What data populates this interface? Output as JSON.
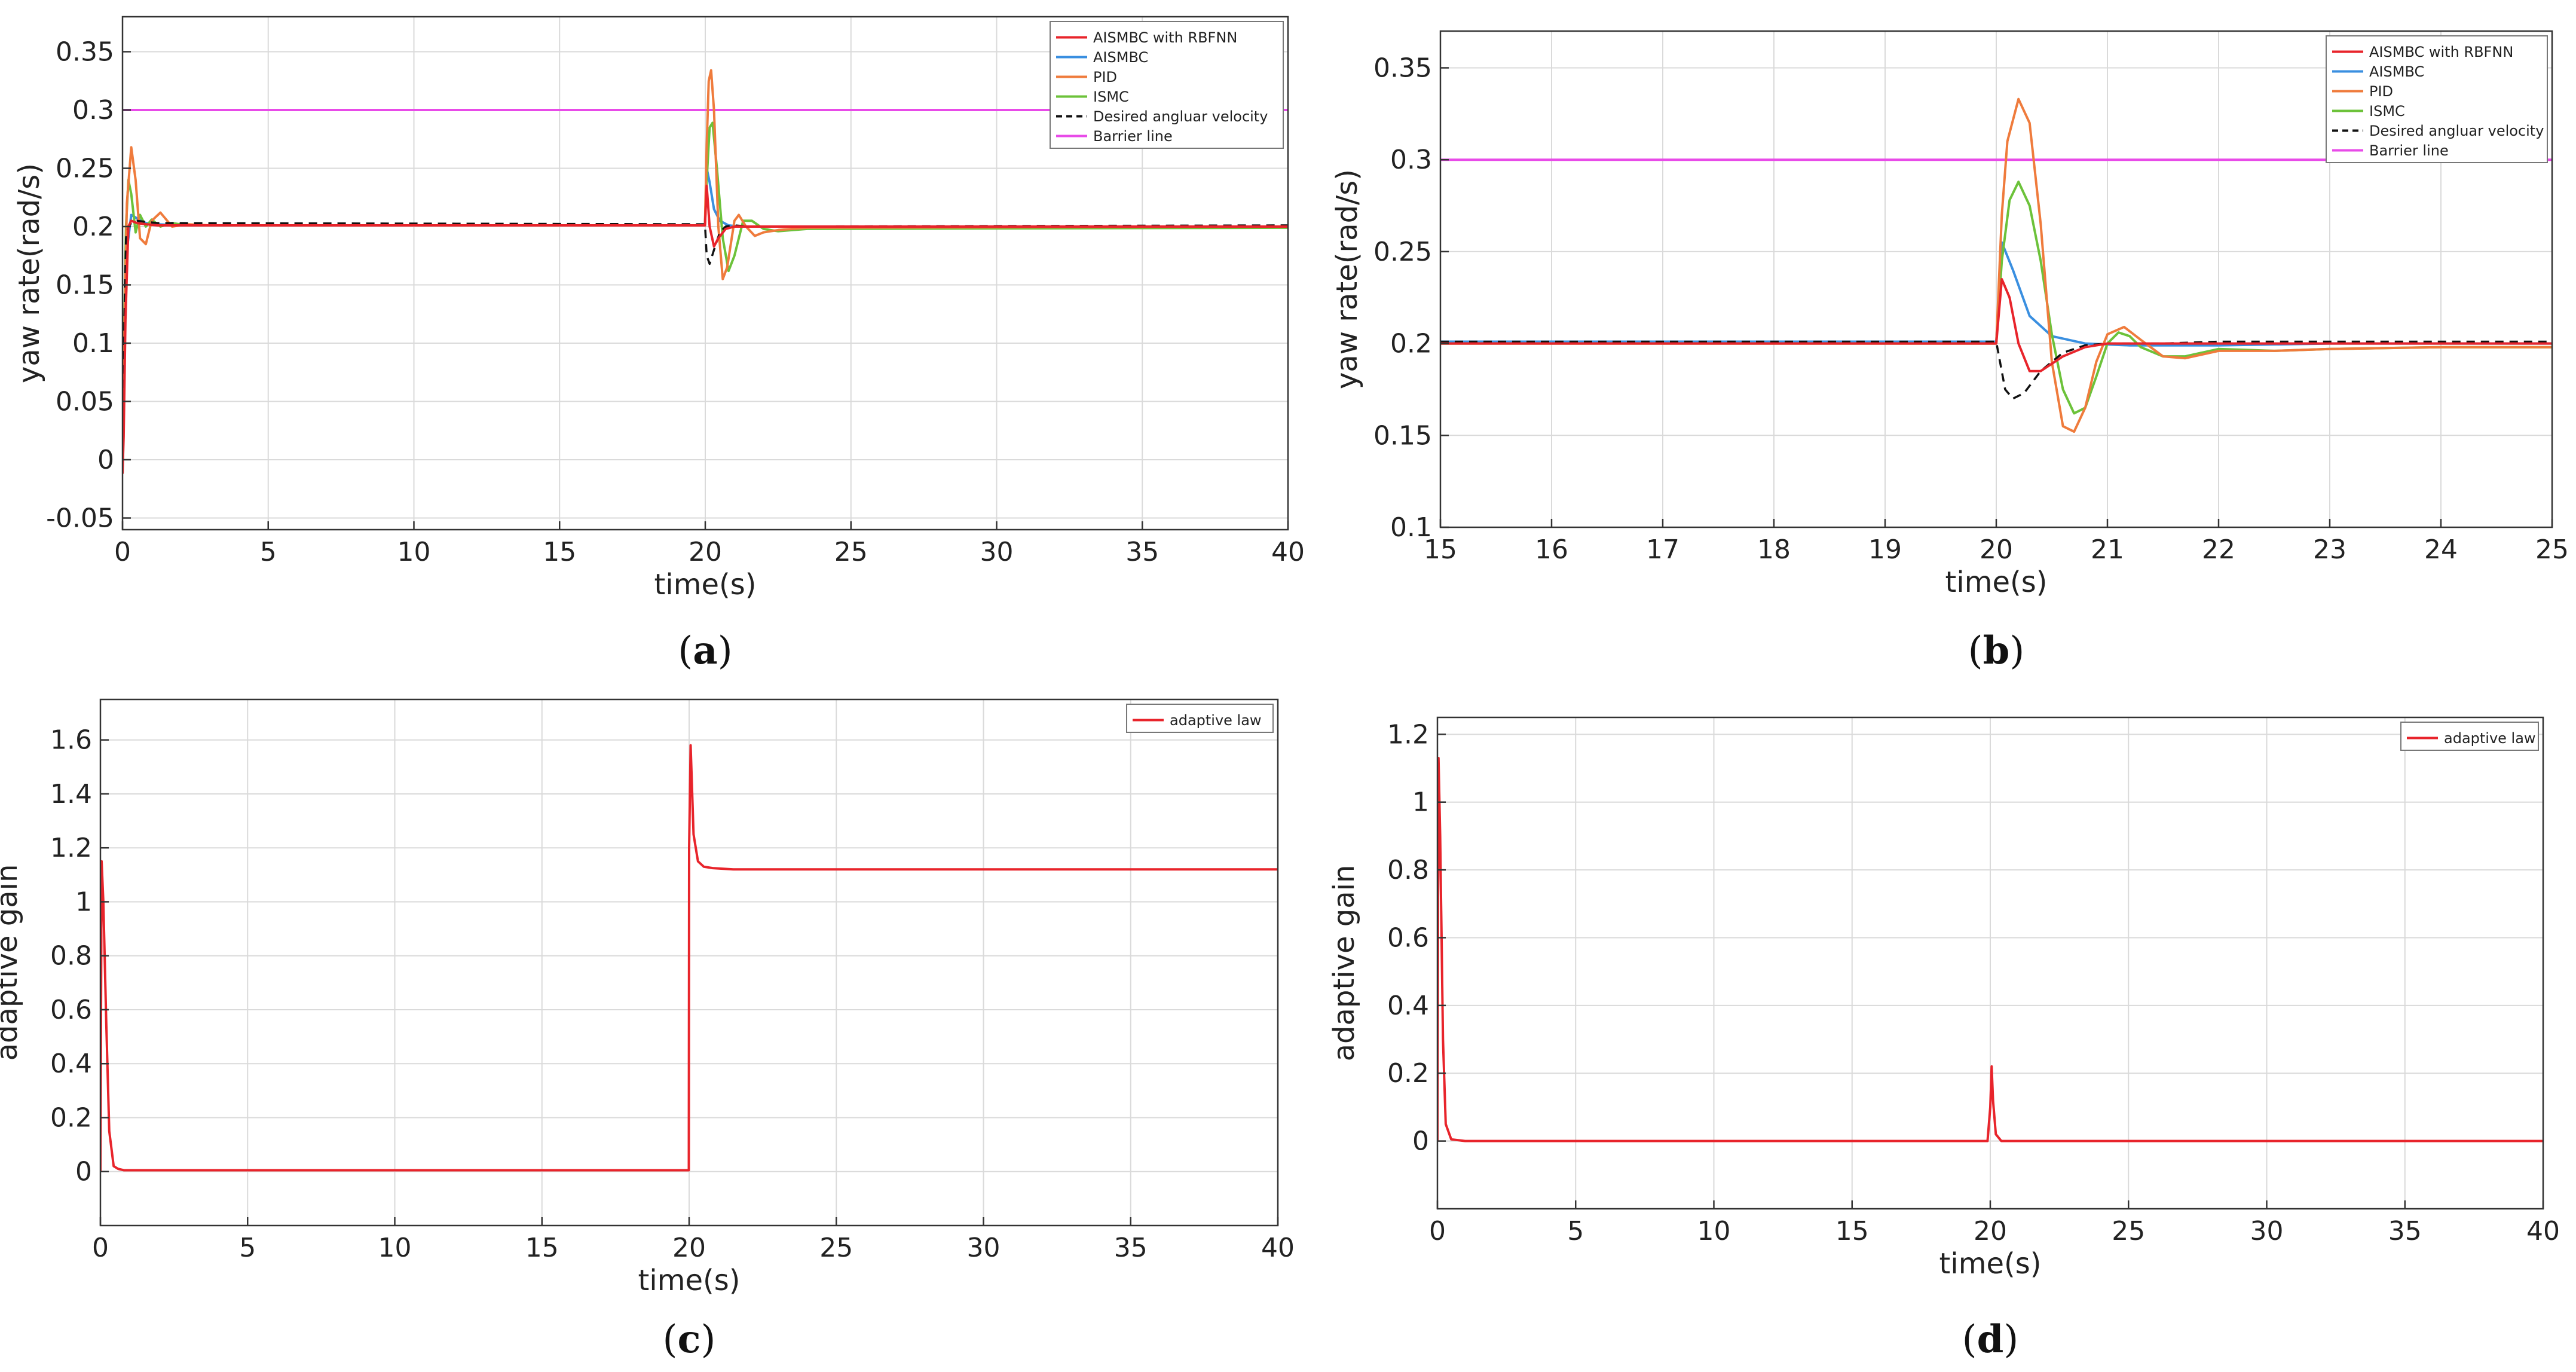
{
  "colors": {
    "aismbc_rbfnn": "#e8242b",
    "aismbc": "#3a8fe0",
    "pid": "#ef7b3c",
    "ismc": "#6cc23a",
    "desired": "#111111",
    "barrier": "#e84be8",
    "grid": "#dadada",
    "axis": "#333333"
  },
  "chart_data": [
    {
      "type": "line",
      "panel_label": "a",
      "xlabel": "time(s)",
      "ylabel": "yaw rate(rad/s)",
      "xlim": [
        0,
        40
      ],
      "ylim": [
        -0.06,
        0.38
      ],
      "xticks": [
        0,
        5,
        10,
        15,
        20,
        25,
        30,
        35,
        40
      ],
      "yticks": [
        -0.05,
        0,
        0.05,
        0.1,
        0.15,
        0.2,
        0.25,
        0.3,
        0.35
      ],
      "xtick_labels": [
        "0",
        "5",
        "10",
        "15",
        "20",
        "25",
        "30",
        "35",
        "40"
      ],
      "ytick_labels": [
        "-0.05",
        "0",
        "0.05",
        "0.1",
        "0.15",
        "0.2",
        "0.25",
        "0.3",
        "0.35"
      ],
      "legend_position": "top-right",
      "legend": [
        "AISMBC with RBFNN",
        "AISMBC",
        "PID",
        "ISMC",
        "Desired angluar velocity",
        "Barrier line"
      ],
      "series": [
        {
          "name": "Barrier line",
          "color_key": "barrier",
          "dash": false,
          "x": [
            0,
            40
          ],
          "y": [
            0.3,
            0.3
          ]
        },
        {
          "name": "AISMBC",
          "color_key": "aismbc",
          "dash": false,
          "x": [
            0,
            0.05,
            0.15,
            0.3,
            0.5,
            0.8,
            1.2,
            2,
            19.99,
            20.05,
            20.15,
            20.3,
            20.5,
            20.8,
            21.2,
            22,
            40
          ],
          "y": [
            0,
            0.09,
            0.18,
            0.21,
            0.207,
            0.203,
            0.202,
            0.201,
            0.201,
            0.25,
            0.238,
            0.215,
            0.205,
            0.201,
            0.2,
            0.2,
            0.2
          ]
        },
        {
          "name": "ISMC",
          "color_key": "ismc",
          "dash": false,
          "x": [
            0,
            0.05,
            0.12,
            0.2,
            0.3,
            0.45,
            0.6,
            0.8,
            1.0,
            1.3,
            1.7,
            2.2,
            19.99,
            20.05,
            20.15,
            20.25,
            20.4,
            20.6,
            20.8,
            21.0,
            21.3,
            21.6,
            22,
            22.5,
            23.5,
            40
          ],
          "y": [
            0,
            0.1,
            0.2,
            0.24,
            0.228,
            0.195,
            0.21,
            0.2,
            0.206,
            0.2,
            0.203,
            0.201,
            0.201,
            0.24,
            0.285,
            0.289,
            0.25,
            0.19,
            0.162,
            0.175,
            0.205,
            0.205,
            0.198,
            0.196,
            0.198,
            0.199
          ]
        },
        {
          "name": "PID",
          "color_key": "pid",
          "dash": false,
          "x": [
            0,
            0.05,
            0.15,
            0.3,
            0.45,
            0.6,
            0.8,
            1.0,
            1.3,
            1.7,
            2.2,
            3,
            19.99,
            20.05,
            20.12,
            20.2,
            20.3,
            20.45,
            20.6,
            20.75,
            21.0,
            21.15,
            21.4,
            21.7,
            22,
            22.5,
            23.5,
            40
          ],
          "y": [
            0,
            0.09,
            0.22,
            0.268,
            0.24,
            0.19,
            0.185,
            0.205,
            0.212,
            0.2,
            0.202,
            0.201,
            0.201,
            0.27,
            0.325,
            0.334,
            0.3,
            0.2,
            0.155,
            0.165,
            0.205,
            0.21,
            0.2,
            0.192,
            0.195,
            0.197,
            0.199,
            0.2
          ]
        },
        {
          "name": "Desired angluar velocity",
          "color_key": "desired",
          "dash": true,
          "x": [
            0,
            0.05,
            0.12,
            0.2,
            0.3,
            0.5,
            0.8,
            1.2,
            19.99,
            20.05,
            20.15,
            20.3,
            20.5,
            20.7,
            21.0,
            21.5,
            40
          ],
          "y": [
            0,
            0.1,
            0.19,
            0.2,
            0.203,
            0.205,
            0.204,
            0.203,
            0.202,
            0.175,
            0.168,
            0.18,
            0.195,
            0.2,
            0.201,
            0.2,
            0.201
          ]
        },
        {
          "name": "AISMBC with RBFNN",
          "color_key": "aismbc_rbfnn",
          "dash": false,
          "x": [
            0,
            0.04,
            0.1,
            0.2,
            0.3,
            0.5,
            0.8,
            1.2,
            19.99,
            20.05,
            20.15,
            20.3,
            20.45,
            20.7,
            21.0,
            22,
            40
          ],
          "y": [
            -0.012,
            0.02,
            0.12,
            0.2,
            0.205,
            0.203,
            0.202,
            0.201,
            0.201,
            0.235,
            0.2,
            0.183,
            0.19,
            0.198,
            0.2,
            0.2,
            0.2
          ]
        }
      ]
    },
    {
      "type": "line",
      "panel_label": "b",
      "xlabel": "time(s)",
      "ylabel": "yaw rate(rad/s)",
      "xlim": [
        15,
        25
      ],
      "ylim": [
        0.1,
        0.37
      ],
      "xticks": [
        15,
        16,
        17,
        18,
        19,
        20,
        21,
        22,
        23,
        24,
        25
      ],
      "yticks": [
        0.1,
        0.15,
        0.2,
        0.25,
        0.3,
        0.35
      ],
      "xtick_labels": [
        "15",
        "16",
        "17",
        "18",
        "19",
        "20",
        "21",
        "22",
        "23",
        "24",
        "25"
      ],
      "ytick_labels": [
        "0.1",
        "0.15",
        "0.2",
        "0.25",
        "0.3",
        "0.35"
      ],
      "legend_position": "top-right",
      "legend": [
        "AISMBC with RBFNN",
        "AISMBC",
        "PID",
        "ISMC",
        "Desired angluar velocity",
        "Barrier line"
      ],
      "series": [
        {
          "name": "Barrier line",
          "color_key": "barrier",
          "dash": false,
          "x": [
            15,
            25
          ],
          "y": [
            0.3,
            0.3
          ]
        },
        {
          "name": "AISMBC",
          "color_key": "aismbc",
          "dash": false,
          "x": [
            15,
            19.99,
            20.0,
            20.05,
            20.15,
            20.3,
            20.5,
            20.8,
            21.2,
            22,
            23,
            25
          ],
          "y": [
            0.201,
            0.201,
            0.201,
            0.255,
            0.24,
            0.215,
            0.204,
            0.2,
            0.199,
            0.199,
            0.2,
            0.2
          ]
        },
        {
          "name": "ISMC",
          "color_key": "ismc",
          "dash": false,
          "x": [
            15,
            19.99,
            20.0,
            20.05,
            20.12,
            20.2,
            20.3,
            20.4,
            20.5,
            20.6,
            20.7,
            20.8,
            20.9,
            21.0,
            21.1,
            21.2,
            21.3,
            21.5,
            21.7,
            22,
            22.5,
            23,
            24,
            25
          ],
          "y": [
            0.2,
            0.2,
            0.2,
            0.245,
            0.278,
            0.288,
            0.275,
            0.245,
            0.205,
            0.175,
            0.162,
            0.165,
            0.182,
            0.2,
            0.206,
            0.204,
            0.198,
            0.193,
            0.193,
            0.197,
            0.196,
            0.197,
            0.198,
            0.198
          ]
        },
        {
          "name": "PID",
          "color_key": "pid",
          "dash": false,
          "x": [
            15,
            19.99,
            20.0,
            20.05,
            20.1,
            20.2,
            20.3,
            20.4,
            20.5,
            20.6,
            20.7,
            20.8,
            20.9,
            21.0,
            21.15,
            21.3,
            21.5,
            21.7,
            22,
            22.5,
            23,
            24,
            25
          ],
          "y": [
            0.2,
            0.2,
            0.2,
            0.27,
            0.31,
            0.333,
            0.32,
            0.265,
            0.19,
            0.155,
            0.152,
            0.165,
            0.19,
            0.205,
            0.209,
            0.202,
            0.193,
            0.192,
            0.196,
            0.196,
            0.197,
            0.198,
            0.198
          ]
        },
        {
          "name": "Desired angluar velocity",
          "color_key": "desired",
          "dash": true,
          "x": [
            15,
            19.99,
            20.0,
            20.08,
            20.15,
            20.25,
            20.4,
            20.6,
            20.8,
            21.0,
            21.5,
            22,
            25
          ],
          "y": [
            0.201,
            0.201,
            0.201,
            0.175,
            0.17,
            0.173,
            0.185,
            0.195,
            0.199,
            0.2,
            0.2,
            0.201,
            0.201
          ]
        },
        {
          "name": "AISMBC with RBFNN",
          "color_key": "aismbc_rbfnn",
          "dash": false,
          "x": [
            15,
            19.99,
            20.0,
            20.05,
            20.12,
            20.2,
            20.3,
            20.4,
            20.6,
            20.8,
            21.0,
            22,
            25
          ],
          "y": [
            0.2,
            0.2,
            0.2,
            0.235,
            0.225,
            0.2,
            0.185,
            0.185,
            0.193,
            0.198,
            0.2,
            0.2,
            0.2
          ]
        }
      ]
    },
    {
      "type": "line",
      "panel_label": "c",
      "xlabel": "time(s)",
      "ylabel": "adaptive gain",
      "xlim": [
        0,
        40
      ],
      "ylim": [
        -0.2,
        1.75
      ],
      "xticks": [
        0,
        5,
        10,
        15,
        20,
        25,
        30,
        35,
        40
      ],
      "yticks": [
        0,
        0.2,
        0.4,
        0.6,
        0.8,
        1,
        1.2,
        1.4,
        1.6
      ],
      "xtick_labels": [
        "0",
        "5",
        "10",
        "15",
        "20",
        "25",
        "30",
        "35",
        "40"
      ],
      "ytick_labels": [
        "0",
        "0.2",
        "0.4",
        "0.6",
        "0.8",
        "1",
        "1.2",
        "1.4",
        "1.6"
      ],
      "legend_position": "top-right",
      "legend": [
        "adaptive law"
      ],
      "series": [
        {
          "name": "adaptive law",
          "color_key": "aismbc_rbfnn",
          "dash": false,
          "x": [
            0,
            0.04,
            0.1,
            0.2,
            0.3,
            0.45,
            0.6,
            0.8,
            19.99,
            20.0,
            20.05,
            20.15,
            20.3,
            20.5,
            20.8,
            21.5,
            40
          ],
          "y": [
            0,
            1.15,
            1.0,
            0.55,
            0.15,
            0.02,
            0.01,
            0.005,
            0.005,
            1.2,
            1.58,
            1.25,
            1.15,
            1.13,
            1.125,
            1.12,
            1.12
          ]
        }
      ]
    },
    {
      "type": "line",
      "panel_label": "d",
      "xlabel": "time(s)",
      "ylabel": "adaptive gain",
      "xlim": [
        0,
        40
      ],
      "ylim": [
        -0.2,
        1.25
      ],
      "xticks": [
        0,
        5,
        10,
        15,
        20,
        25,
        30,
        35,
        40
      ],
      "yticks": [
        0,
        0.2,
        0.4,
        0.6,
        0.8,
        1,
        1.2
      ],
      "xtick_labels": [
        "0",
        "5",
        "10",
        "15",
        "20",
        "25",
        "30",
        "35",
        "40"
      ],
      "ytick_labels": [
        "0",
        "0.2",
        "0.4",
        "0.6",
        "0.8",
        "1",
        "1.2"
      ],
      "legend_position": "top-right",
      "legend": [
        "adaptive law"
      ],
      "series": [
        {
          "name": "adaptive law",
          "color_key": "aismbc_rbfnn",
          "dash": false,
          "x": [
            0,
            0.04,
            0.1,
            0.2,
            0.3,
            0.5,
            1,
            19.9,
            20.0,
            20.05,
            20.1,
            20.2,
            20.4,
            40
          ],
          "y": [
            0,
            1.13,
            0.9,
            0.3,
            0.05,
            0.005,
            0,
            0,
            0.1,
            0.22,
            0.12,
            0.02,
            0,
            0
          ]
        }
      ]
    }
  ]
}
